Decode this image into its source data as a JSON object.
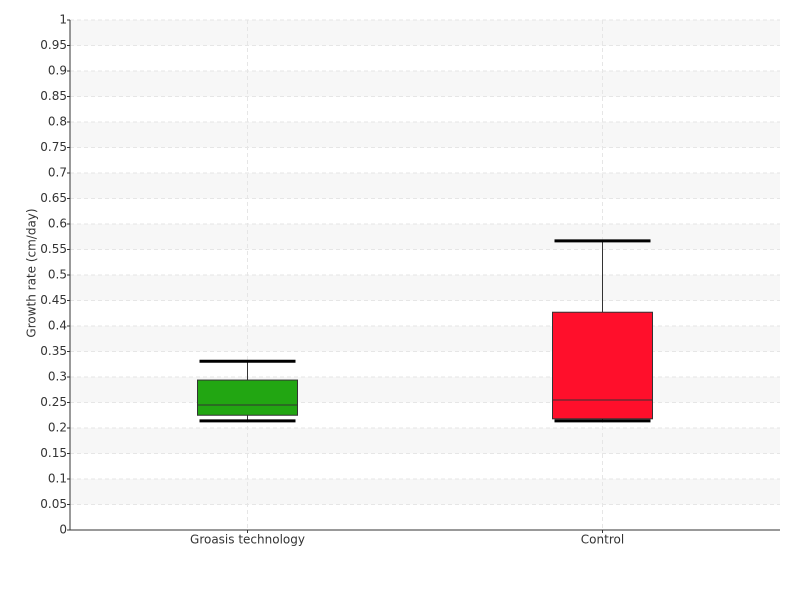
{
  "chart_data": {
    "type": "box",
    "y_label": "Growth rate (cm/day)",
    "categories": [
      "Groasis technology",
      "Control"
    ],
    "boxes": [
      {
        "min": 0.214,
        "q1": 0.225,
        "median": 0.245,
        "q3": 0.294,
        "max": 0.331,
        "color": "#22a612"
      },
      {
        "min": 0.214,
        "q1": 0.218,
        "median": 0.255,
        "q3": 0.427,
        "max": 0.567,
        "color": "#ff0f2b"
      }
    ],
    "ylim": [
      0,
      1
    ],
    "yticks": [
      0,
      0.05,
      0.1,
      0.15,
      0.2,
      0.25,
      0.3,
      0.35,
      0.4,
      0.45,
      0.5,
      0.55,
      0.6,
      0.65,
      0.7,
      0.75,
      0.8,
      0.85,
      0.9,
      0.95,
      1
    ],
    "grid": true
  }
}
